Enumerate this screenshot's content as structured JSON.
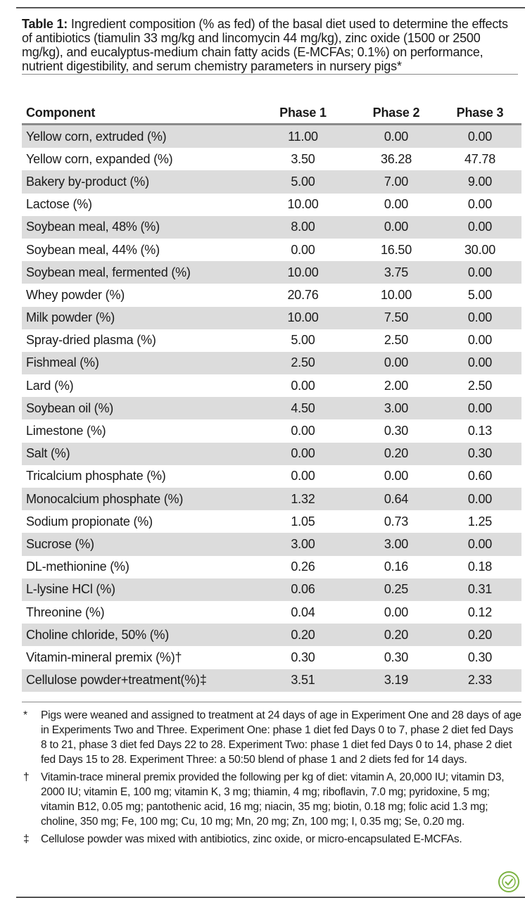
{
  "caption": {
    "label": "Table 1:",
    "text": "Ingredient composition (% as fed) of the basal diet used to determine the effects of antibiotics (tiamulin 33 mg/kg and lincomycin 44 mg/kg), zinc oxide (1500 or 2500 mg/kg), and eucalyptus-medium chain fatty acids (E-MCFAs; 0.1%) on performance, nutrient digestibility, and serum chemistry parameters in nursery pigs*"
  },
  "table": {
    "headers": [
      "Component",
      "Phase 1",
      "Phase 2",
      "Phase 3"
    ],
    "rows": [
      [
        "Yellow corn, extruded (%)",
        "11.00",
        "0.00",
        "0.00"
      ],
      [
        "Yellow corn, expanded (%)",
        "3.50",
        "36.28",
        "47.78"
      ],
      [
        "Bakery by-product (%)",
        "5.00",
        "7.00",
        "9.00"
      ],
      [
        "Lactose (%)",
        "10.00",
        "0.00",
        "0.00"
      ],
      [
        "Soybean meal, 48% (%)",
        "8.00",
        "0.00",
        "0.00"
      ],
      [
        "Soybean meal, 44% (%)",
        "0.00",
        "16.50",
        "30.00"
      ],
      [
        "Soybean meal, fermented (%)",
        "10.00",
        "3.75",
        "0.00"
      ],
      [
        "Whey powder (%)",
        "20.76",
        "10.00",
        "5.00"
      ],
      [
        "Milk powder (%)",
        "10.00",
        "7.50",
        "0.00"
      ],
      [
        "Spray-dried plasma (%)",
        "5.00",
        "2.50",
        "0.00"
      ],
      [
        "Fishmeal (%)",
        "2.50",
        "0.00",
        "0.00"
      ],
      [
        "Lard (%)",
        "0.00",
        "2.00",
        "2.50"
      ],
      [
        "Soybean oil (%)",
        "4.50",
        "3.00",
        "0.00"
      ],
      [
        "Limestone (%)",
        "0.00",
        "0.30",
        "0.13"
      ],
      [
        "Salt (%)",
        "0.00",
        "0.20",
        "0.30"
      ],
      [
        "Tricalcium phosphate (%)",
        "0.00",
        "0.00",
        "0.60"
      ],
      [
        "Monocalcium phosphate (%)",
        "1.32",
        "0.64",
        "0.00"
      ],
      [
        "Sodium propionate (%)",
        "1.05",
        "0.73",
        "1.25"
      ],
      [
        "Sucrose (%)",
        "3.00",
        "3.00",
        "0.00"
      ],
      [
        "DL-methionine (%)",
        "0.26",
        "0.16",
        "0.18"
      ],
      [
        "L-lysine HCl (%)",
        "0.06",
        "0.25",
        "0.31"
      ],
      [
        "Threonine (%)",
        "0.04",
        "0.00",
        "0.12"
      ],
      [
        "Choline chloride, 50% (%)",
        "0.20",
        "0.20",
        "0.20"
      ],
      [
        "Vitamin-mineral premix (%)†",
        "0.30",
        "0.30",
        "0.30"
      ],
      [
        "Cellulose powder+treatment(%)‡",
        "3.51",
        "3.19",
        "2.33"
      ]
    ]
  },
  "footnotes": [
    {
      "symbol": "*",
      "text": "Pigs were weaned and assigned to treatment at 24 days of age in Experiment One and 28 days of age in Experiments Two and Three. Experiment One: phase 1 diet fed Days 0 to 7, phase 2 diet fed Days 8 to 21, phase 3 diet fed Days 22 to 28. Experiment Two: phase 1 diet fed Days 0 to 14, phase 2 diet fed Days 15 to 28. Experiment Three: a 50:50 blend of phase 1 and 2 diets fed for 14 days."
    },
    {
      "symbol": "†",
      "text": "Vitamin-trace mineral premix provided the following per kg of diet: vitamin A, 20,000 IU; vitamin D3, 2000 IU; vitamin E, 100 mg; vitamin K, 3 mg; thiamin, 4 mg; riboflavin, 7.0 mg; pyridoxine, 5 mg; vitamin B12, 0.05 mg; pantothenic acid, 16 mg; niacin, 35 mg; biotin, 0.18 mg; folic acid 1.3 mg; choline, 350 mg; Fe, 100 mg; Cu, 10 mg; Mn, 20 mg; Zn, 100 mg; I, 0.35 mg; Se, 0.20 mg."
    },
    {
      "symbol": "‡",
      "text": "Cellulose powder was mixed with antibiotics, zinc oxide, or micro-encapsulated E-MCFAs."
    }
  ],
  "badge": {
    "icon": "peer-reviewed-check-icon",
    "color": "#7cb342"
  }
}
